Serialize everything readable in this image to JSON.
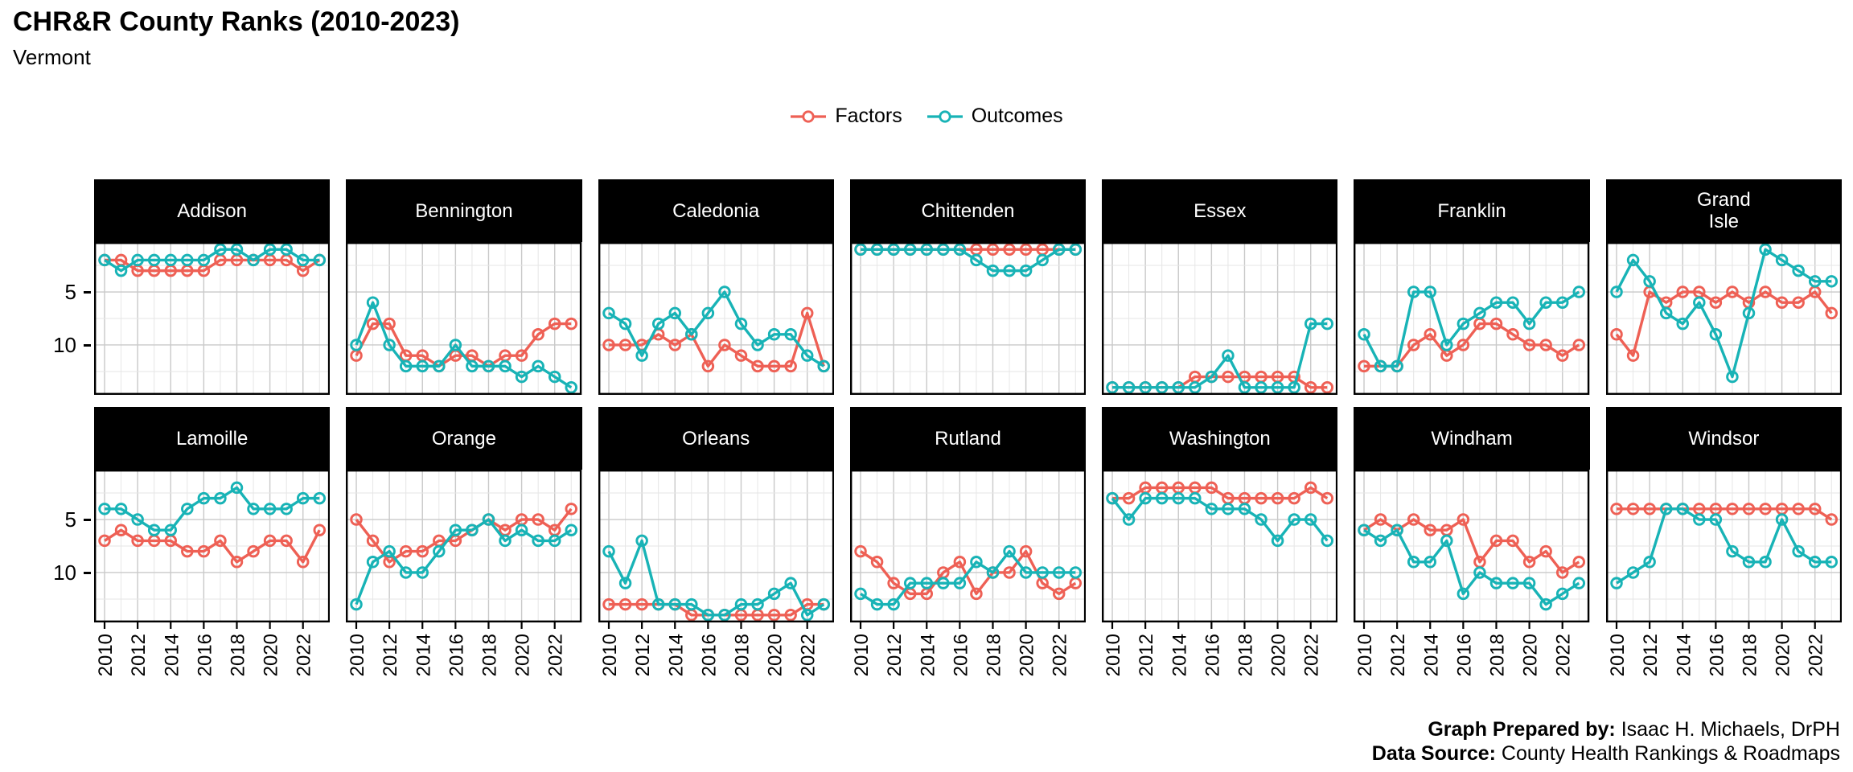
{
  "header": {
    "title": "CHR&R County Ranks (2010-2023)",
    "subtitle": "Vermont"
  },
  "legend": {
    "factors_label": "Factors",
    "outcomes_label": "Outcomes"
  },
  "footer": {
    "prepared_label": "Graph Prepared by:",
    "prepared_value": " Isaac H. Michaels, DrPH",
    "source_label": "Data Source:",
    "source_value": " County Health Rankings & Roadmaps"
  },
  "chart_data": {
    "type": "line",
    "title": "CHR&R County Ranks (2010-2023)",
    "subtitle": "Vermont",
    "x": [
      2010,
      2011,
      2012,
      2013,
      2014,
      2015,
      2016,
      2017,
      2018,
      2019,
      2020,
      2021,
      2022,
      2023
    ],
    "x_tick_labels": [
      "2010",
      "2012",
      "2014",
      "2016",
      "2018",
      "2020",
      "2022"
    ],
    "y_tick_labels": [
      "5",
      "10"
    ],
    "y_ticks": [
      5,
      10
    ],
    "y_axis_inverted": true,
    "y_domain": [
      0.3,
      14.7
    ],
    "grid": "on",
    "legend_position": "top-center",
    "facet_rows": 2,
    "facet_cols": 7,
    "series_names": [
      "Factors",
      "Outcomes"
    ],
    "colors": {
      "factors": "#EE6055",
      "outcomes": "#18B3B6"
    },
    "facets": [
      {
        "county": "Addison",
        "factors": [
          2,
          2,
          3,
          3,
          3,
          3,
          3,
          2,
          2,
          2,
          2,
          2,
          3,
          2
        ],
        "outcomes": [
          2,
          3,
          2,
          2,
          2,
          2,
          2,
          1,
          1,
          2,
          1,
          1,
          2,
          2
        ]
      },
      {
        "county": "Bennington",
        "factors": [
          11,
          8,
          8,
          11,
          11,
          12,
          11,
          11,
          12,
          11,
          11,
          9,
          8,
          8
        ],
        "outcomes": [
          10,
          6,
          10,
          12,
          12,
          12,
          10,
          12,
          12,
          12,
          13,
          12,
          13,
          14
        ]
      },
      {
        "county": "Caledonia",
        "factors": [
          10,
          10,
          10,
          9,
          10,
          9,
          12,
          10,
          11,
          12,
          12,
          12,
          7,
          12
        ],
        "outcomes": [
          7,
          8,
          11,
          8,
          7,
          9,
          7,
          5,
          8,
          10,
          9,
          9,
          11,
          12
        ]
      },
      {
        "county": "Chittenden",
        "factors": [
          1,
          1,
          1,
          1,
          1,
          1,
          1,
          1,
          1,
          1,
          1,
          1,
          1,
          1
        ],
        "outcomes": [
          1,
          1,
          1,
          1,
          1,
          1,
          1,
          2,
          3,
          3,
          3,
          2,
          1,
          1
        ]
      },
      {
        "county": "Essex",
        "factors": [
          14,
          14,
          14,
          14,
          14,
          13,
          13,
          13,
          13,
          13,
          13,
          13,
          14,
          14
        ],
        "outcomes": [
          14,
          14,
          14,
          14,
          14,
          14,
          13,
          11,
          14,
          14,
          14,
          14,
          8,
          8
        ]
      },
      {
        "county": "Franklin",
        "factors": [
          12,
          12,
          12,
          10,
          9,
          11,
          10,
          8,
          8,
          9,
          10,
          10,
          11,
          10
        ],
        "outcomes": [
          9,
          12,
          12,
          5,
          5,
          10,
          8,
          7,
          6,
          6,
          8,
          6,
          6,
          5
        ]
      },
      {
        "county": "Grand\nIsle",
        "factors": [
          9,
          11,
          5,
          6,
          5,
          5,
          6,
          5,
          6,
          5,
          6,
          6,
          5,
          7
        ],
        "outcomes": [
          5,
          2,
          4,
          7,
          8,
          6,
          9,
          13,
          7,
          1,
          2,
          3,
          4,
          4
        ]
      },
      {
        "county": "Lamoille",
        "factors": [
          7,
          6,
          7,
          7,
          7,
          8,
          8,
          7,
          9,
          8,
          7,
          7,
          9,
          6
        ],
        "outcomes": [
          4,
          4,
          5,
          6,
          6,
          4,
          3,
          3,
          2,
          4,
          4,
          4,
          3,
          3
        ]
      },
      {
        "county": "Orange",
        "factors": [
          5,
          7,
          9,
          8,
          8,
          7,
          7,
          6,
          5,
          6,
          5,
          5,
          6,
          4
        ],
        "outcomes": [
          13,
          9,
          8,
          10,
          10,
          8,
          6,
          6,
          5,
          7,
          6,
          7,
          7,
          6
        ]
      },
      {
        "county": "Orleans",
        "factors": [
          13,
          13,
          13,
          13,
          13,
          14,
          14,
          14,
          14,
          14,
          14,
          14,
          13,
          13
        ],
        "outcomes": [
          8,
          11,
          7,
          13,
          13,
          13,
          14,
          14,
          13,
          13,
          12,
          11,
          14,
          13
        ]
      },
      {
        "county": "Rutland",
        "factors": [
          8,
          9,
          11,
          12,
          12,
          10,
          9,
          12,
          10,
          10,
          8,
          11,
          12,
          11
        ],
        "outcomes": [
          12,
          13,
          13,
          11,
          11,
          11,
          11,
          9,
          10,
          8,
          10,
          10,
          10,
          10
        ]
      },
      {
        "county": "Washington",
        "factors": [
          3,
          3,
          2,
          2,
          2,
          2,
          2,
          3,
          3,
          3,
          3,
          3,
          2,
          3
        ],
        "outcomes": [
          3,
          5,
          3,
          3,
          3,
          3,
          4,
          4,
          4,
          5,
          7,
          5,
          5,
          7
        ]
      },
      {
        "county": "Windham",
        "factors": [
          6,
          5,
          6,
          5,
          6,
          6,
          5,
          9,
          7,
          7,
          9,
          8,
          10,
          9
        ],
        "outcomes": [
          6,
          7,
          6,
          9,
          9,
          7,
          12,
          10,
          11,
          11,
          11,
          13,
          12,
          11
        ]
      },
      {
        "county": "Windsor",
        "factors": [
          4,
          4,
          4,
          4,
          4,
          4,
          4,
          4,
          4,
          4,
          4,
          4,
          4,
          5
        ],
        "outcomes": [
          11,
          10,
          9,
          4,
          4,
          5,
          5,
          8,
          9,
          9,
          5,
          8,
          9,
          9
        ]
      }
    ]
  }
}
